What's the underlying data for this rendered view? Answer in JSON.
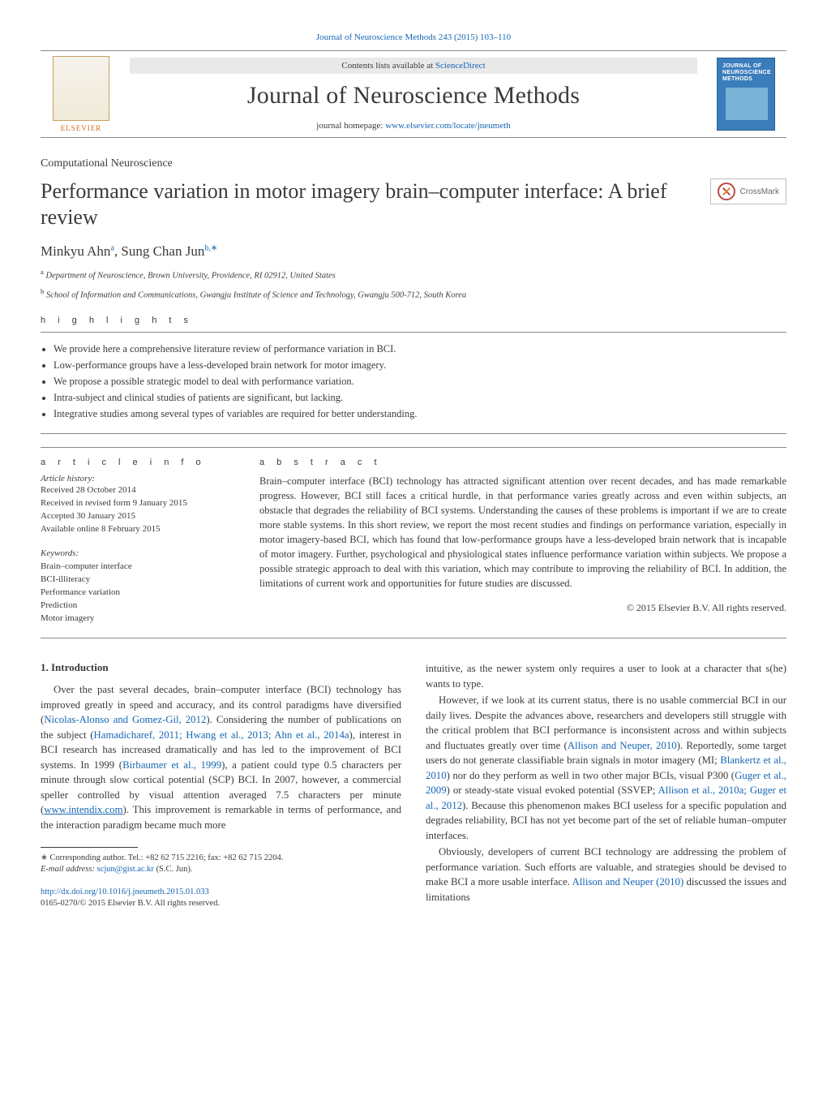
{
  "colors": {
    "link": "#1566b4",
    "text": "#3a3a3a",
    "cover_bg": "#3a7dbb",
    "rule": "#8a8a8a"
  },
  "header": {
    "citation": "Journal of Neuroscience Methods 243 (2015) 103–110",
    "contents_prefix": "Contents lists available at ",
    "contents_link": "ScienceDirect",
    "journal_title": "Journal of Neuroscience Methods",
    "homepage_label": "journal homepage: ",
    "homepage_url": "www.elsevier.com/locate/jneumeth",
    "publisher": "ELSEVIER",
    "cover_text": "JOURNAL OF\nNEUROSCIENCE\nMETHODS"
  },
  "crossmark_label": "CrossMark",
  "article": {
    "section": "Computational Neuroscience",
    "title": "Performance variation in motor imagery brain–computer interface: A brief review",
    "authors_html": "Minkyu Ahn",
    "author1_sup": "a",
    "author2": ", Sung Chan Jun",
    "author2_sup": "b,∗",
    "affiliations": [
      {
        "sup": "a",
        "text": "Department of Neuroscience, Brown University, Providence, RI 02912, United States"
      },
      {
        "sup": "b",
        "text": "School of Information and Communications, Gwangju Institute of Science and Technology, Gwangju 500-712, South Korea"
      }
    ]
  },
  "highlights": {
    "heading": "h i g h l i g h t s",
    "items": [
      "We provide here a comprehensive literature review of performance variation in BCI.",
      "Low-performance groups have a less-developed brain network for motor imagery.",
      "We propose a possible strategic model to deal with performance variation.",
      "Intra-subject and clinical studies of patients are significant, but lacking.",
      "Integrative studies among several types of variables are required for better understanding."
    ]
  },
  "info": {
    "heading": "a r t i c l e   i n f o",
    "history_label": "Article history:",
    "dates": [
      "Received 28 October 2014",
      "Received in revised form 9 January 2015",
      "Accepted 30 January 2015",
      "Available online 8 February 2015"
    ],
    "keywords_label": "Keywords:",
    "keywords": [
      "Brain–computer interface",
      "BCI-illiteracy",
      "Performance variation",
      "Prediction",
      "Motor imagery"
    ]
  },
  "abstract": {
    "heading": "a b s t r a c t",
    "text": "Brain–computer interface (BCI) technology has attracted significant attention over recent decades, and has made remarkable progress. However, BCI still faces a critical hurdle, in that performance varies greatly across and even within subjects, an obstacle that degrades the reliability of BCI systems. Understanding the causes of these problems is important if we are to create more stable systems. In this short review, we report the most recent studies and findings on performance variation, especially in motor imagery-based BCI, which has found that low-performance groups have a less-developed brain network that is incapable of motor imagery. Further, psychological and physiological states influence performance variation within subjects. We propose a possible strategic approach to deal with this variation, which may contribute to improving the reliability of BCI. In addition, the limitations of current work and opportunities for future studies are discussed.",
    "copyright": "© 2015 Elsevier B.V. All rights reserved."
  },
  "body": {
    "section1_heading": "1.  Introduction",
    "col1": {
      "p1_a": "Over the past several decades, brain–computer interface (BCI) technology has improved greatly in speed and accuracy, and its control paradigms have diversified (",
      "p1_c1": "Nicolas-Alonso and Gomez-Gil, 2012",
      "p1_b": "). Considering the number of publications on the subject (",
      "p1_c2": "Hamadicharef, 2011; Hwang et al., 2013; Ahn et al., 2014a",
      "p1_c": "), interest in BCI research has increased dramatically and has led to the improvement of BCI systems. In 1999 (",
      "p1_c3": "Birbaumer et al., 1999",
      "p1_d": "), a patient could type 0.5 characters per minute through slow cortical potential (SCP) BCI. In 2007, however, a commercial speller controlled by visual attention averaged 7.5 characters per minute (",
      "p1_url": "www.intendix.com",
      "p1_e": "). This improvement is remarkable in terms of performance, and the interaction paradigm became much more"
    },
    "col2": {
      "p0": "intuitive, as the newer system only requires a user to look at a character that s(he) wants to type.",
      "p1_a": "However, if we look at its current status, there is no usable commercial BCI in our daily lives. Despite the advances above, researchers and developers still struggle with the critical problem that BCI performance is inconsistent across and within subjects and fluctuates greatly over time (",
      "p1_c1": "Allison and Neuper, 2010",
      "p1_b": "). Reportedly, some target users do not generate classifiable brain signals in motor imagery (MI; ",
      "p1_c2": "Blankertz et al., 2010",
      "p1_c": ") nor do they perform as well in two other major BCIs, visual P300 (",
      "p1_c3": "Guger et al., 2009",
      "p1_d": ") or steady-state visual evoked potential (SSVEP; ",
      "p1_c4": "Allison et al., 2010a; Guger et al., 2012",
      "p1_e": "). Because this phenomenon makes BCI useless for a specific population and degrades reliability, BCI has not yet become part of the set of reliable human–omputer interfaces.",
      "p2_a": "Obviously, developers of current BCI technology are addressing the problem of performance variation. Such efforts are valuable, and strategies should be devised to make BCI a more usable interface. ",
      "p2_c1": "Allison and Neuper (2010)",
      "p2_b": " discussed the issues and limitations"
    }
  },
  "footnote": {
    "corr": "∗ Corresponding author. Tel.: +82 62 715 2216; fax: +82 62 715 2204.",
    "email_label": "E-mail address: ",
    "email": "scjun@gist.ac.kr",
    "email_tail": " (S.C. Jun)."
  },
  "doi": {
    "url": "http://dx.doi.org/10.1016/j.jneumeth.2015.01.033",
    "issn_line": "0165-0270/© 2015 Elsevier B.V. All rights reserved."
  }
}
